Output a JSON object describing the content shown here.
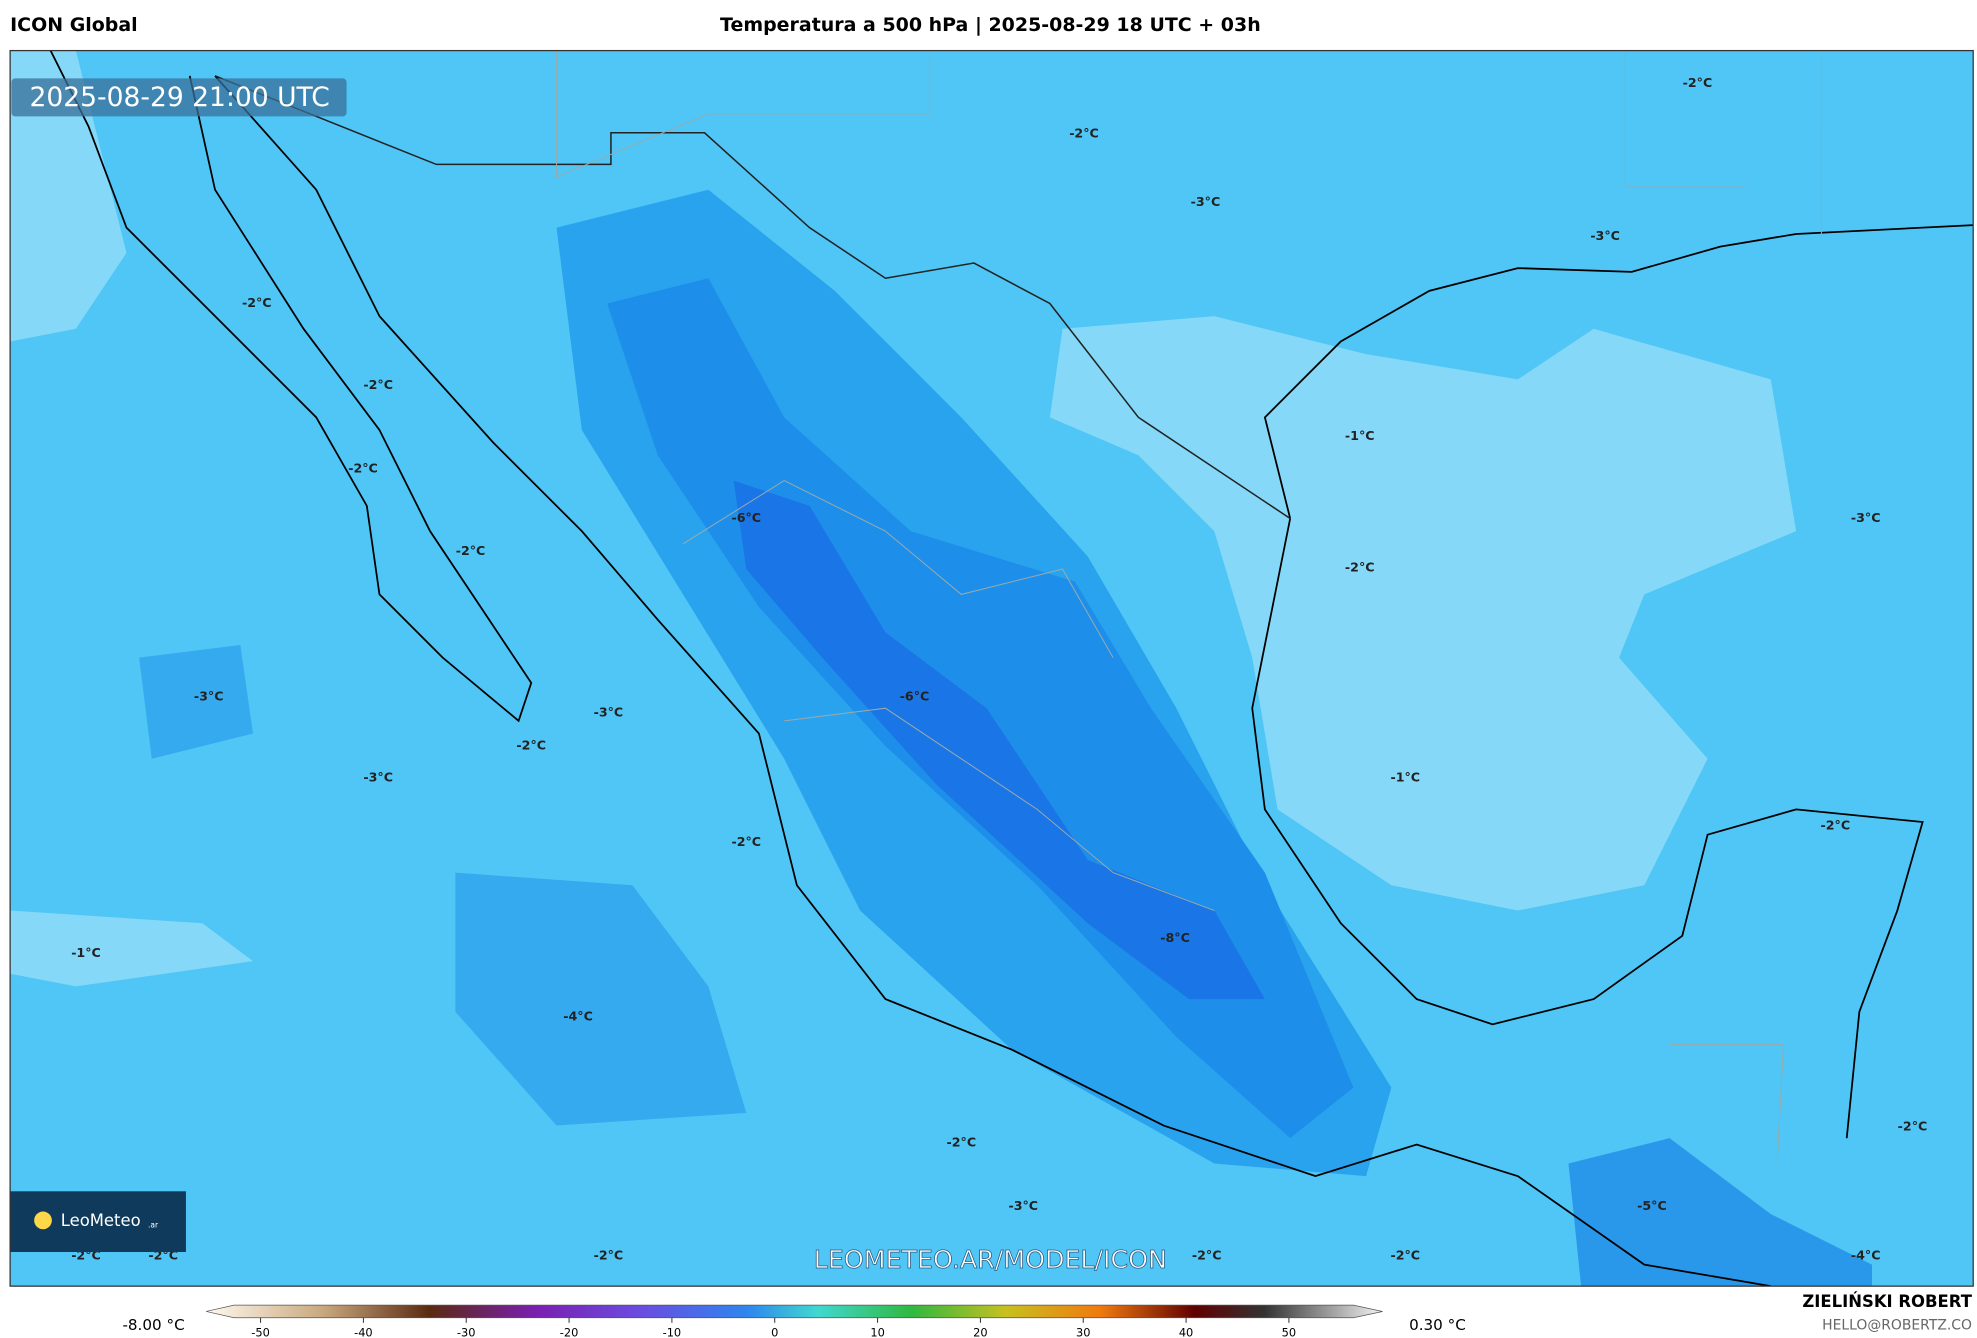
{
  "header": {
    "left": "ICON Global",
    "title": "Temperatura a 500 hPa | 2025-08-29 18 UTC + 03h"
  },
  "map": {
    "timestamp": "2025-08-29 21:00 UTC",
    "watermark": "LEOMETEO.AR/MODEL/ICON",
    "logo": "LeoMeteo",
    "logo_suffix": ".ar",
    "contour_labels": [
      "-2°C",
      "-2°C",
      "-3°C",
      "-3°C",
      "-2°C",
      "-2°C",
      "-2°C",
      "-1°C",
      "-3°C",
      "-6°C",
      "-2°C",
      "-2°C",
      "-3°C",
      "-6°C",
      "-3°C",
      "-2°C",
      "-3°C",
      "-1°C",
      "-2°C",
      "-2°C",
      "-1°C",
      "-8°C",
      "-4°C",
      "-2°C",
      "-2°C",
      "-3°C",
      "-5°C",
      "-2°C",
      "-2°C",
      "-2°C",
      "-2°C",
      "-2°C",
      "-4°C"
    ]
  },
  "colorbar": {
    "min_label": "-8.00 °C",
    "max_label": "0.30 °C",
    "ticks": [
      -50,
      -40,
      -30,
      -20,
      -10,
      0,
      10,
      20,
      30,
      40,
      50
    ]
  },
  "footer": {
    "author": "ZIELIŃSKI ROBERT",
    "email": "HELLO@ROBERTZ.CO"
  }
}
